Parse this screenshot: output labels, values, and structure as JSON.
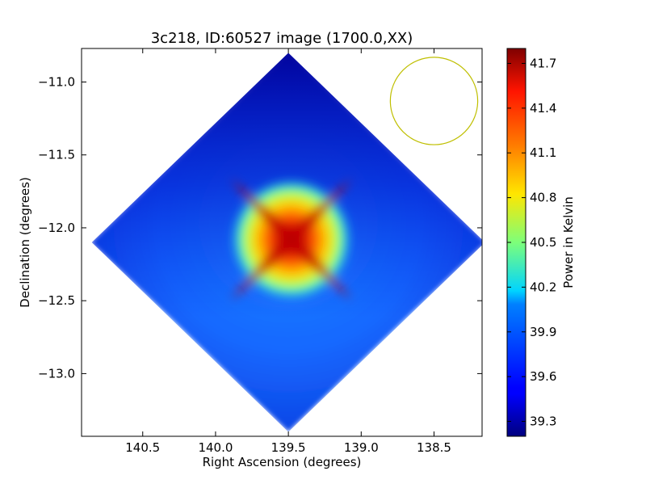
{
  "chart_data": {
    "type": "heatmap",
    "title": "3c218, ID:60527 image (1700.0,XX)",
    "xlabel": "Right Ascension (degrees)",
    "ylabel": "Declination (degrees)",
    "xlim": [
      140.92,
      138.17
    ],
    "ylim": [
      -13.43,
      -10.77
    ],
    "x_ticks": [
      140.5,
      140.0,
      139.5,
      139.0,
      138.5
    ],
    "x_tick_labels": [
      "140.5",
      "140.0",
      "139.5",
      "139.0",
      "138.5"
    ],
    "y_ticks": [
      -11.0,
      -11.5,
      -12.0,
      -12.5,
      -13.0
    ],
    "y_tick_labels": [
      "−11.0",
      "−11.5",
      "−12.0",
      "−12.5",
      "−13.0"
    ],
    "colorbar": {
      "label": "Power in Kelvin",
      "colormap": "jet",
      "vmin": 39.2,
      "vmax": 41.8,
      "ticks": [
        39.3,
        39.6,
        39.9,
        40.2,
        40.5,
        40.8,
        41.1,
        41.4,
        41.7
      ],
      "tick_labels": [
        "39.3",
        "39.6",
        "39.9",
        "40.2",
        "40.5",
        "40.8",
        "41.1",
        "41.4",
        "41.7"
      ]
    },
    "field": {
      "shape": "diamond",
      "center": [
        139.5,
        -12.1
      ],
      "half_width_deg": 1.35,
      "half_height_deg": 1.3,
      "background_value": 39.5,
      "peak_value": 41.8,
      "peak_center": [
        139.48,
        -12.08
      ]
    },
    "beam": {
      "shape": "circle",
      "center": [
        138.5,
        -11.13
      ],
      "radius_deg": 0.3,
      "color": "#bfbf00"
    },
    "grid": false
  }
}
